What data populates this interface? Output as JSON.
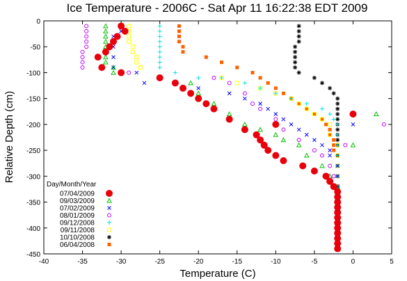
{
  "chart_data": {
    "type": "scatter",
    "title": "Ice Temperature - 2006C - Sat Apr 11 16:22:38 EDT 2009",
    "xlabel": "Temperature (C)",
    "ylabel": "Relative Depth (cm)",
    "xlim": [
      -40,
      5
    ],
    "ylim": [
      -450,
      0
    ],
    "xticks": [
      "-40",
      "-35",
      "-30",
      "-25",
      "-20",
      "-15",
      "-10",
      "-5",
      "0",
      "5"
    ],
    "yticks": [
      "0",
      "-50",
      "-100",
      "-150",
      "-200",
      "-250",
      "-300",
      "-350",
      "-400",
      "-450"
    ],
    "legend_title": "Day/Month/Year",
    "legend_position": "bottom-left",
    "grid": false,
    "series": [
      {
        "name": "07/04/2009",
        "marker": "filled-circle",
        "color": "#e8000b",
        "points": [
          [
            -30,
            -10
          ],
          [
            -29.5,
            -20
          ],
          [
            -30.5,
            -30
          ],
          [
            -31,
            -40
          ],
          [
            -31.5,
            -50
          ],
          [
            -32,
            -60
          ],
          [
            -33,
            -70
          ],
          [
            -32.5,
            -90
          ],
          [
            -30,
            -100
          ],
          [
            -25,
            -110
          ],
          [
            -23,
            -120
          ],
          [
            -22,
            -130
          ],
          [
            -21,
            -140
          ],
          [
            -20,
            -150
          ],
          [
            -19,
            -160
          ],
          [
            -18,
            -170
          ],
          [
            -16,
            -190
          ],
          [
            -14,
            -210
          ],
          [
            -12.5,
            -220
          ],
          [
            -12,
            -230
          ],
          [
            -11.5,
            -240
          ],
          [
            -11,
            -250
          ],
          [
            -10,
            -200
          ],
          [
            -10,
            -260
          ],
          [
            -9,
            -270
          ],
          [
            -6.5,
            -280
          ],
          [
            -5,
            -290
          ],
          [
            -3.5,
            -300
          ],
          [
            -3,
            -310
          ],
          [
            -2.5,
            -320
          ],
          [
            -2,
            -330
          ],
          [
            -2,
            -340
          ],
          [
            -2,
            -350
          ],
          [
            -2,
            -360
          ],
          [
            -2,
            -370
          ],
          [
            -2,
            -380
          ],
          [
            -2,
            -390
          ],
          [
            -2,
            -400
          ],
          [
            -2,
            -410
          ],
          [
            -2,
            -420
          ],
          [
            -2,
            -430
          ],
          [
            -2,
            -440
          ],
          [
            0,
            -180
          ]
        ]
      },
      {
        "name": "09/03/2009",
        "marker": "triangle",
        "color": "#00c000",
        "points": [
          [
            -32,
            -10
          ],
          [
            -32,
            -20
          ],
          [
            -32,
            -30
          ],
          [
            -32,
            -40
          ],
          [
            -32,
            -50
          ],
          [
            -32,
            -60
          ],
          [
            -32,
            -70
          ],
          [
            -32,
            -80
          ],
          [
            -31,
            -90
          ],
          [
            -31,
            -100
          ],
          [
            -25,
            -110
          ],
          [
            -21,
            -120
          ],
          [
            -20,
            -140
          ],
          [
            -18,
            -160
          ],
          [
            -16,
            -180
          ],
          [
            -14,
            -200
          ],
          [
            -12,
            -210
          ],
          [
            -10,
            -220
          ],
          [
            -9,
            -230
          ],
          [
            -7,
            -240
          ],
          [
            -6,
            -260
          ],
          [
            -4,
            -280
          ],
          [
            -3,
            -300
          ],
          [
            -2,
            -320
          ],
          [
            -2,
            -340
          ],
          [
            -2,
            -360
          ],
          [
            -2,
            -380
          ],
          [
            -2,
            -400
          ],
          [
            -2,
            -420
          ],
          [
            -2,
            -440
          ],
          [
            3,
            -180
          ],
          [
            0,
            -240
          ]
        ]
      },
      {
        "name": "07/02/2009",
        "marker": "x",
        "color": "#0000ff",
        "points": [
          [
            -30,
            -10
          ],
          [
            -30,
            -20
          ],
          [
            -31,
            -30
          ],
          [
            -31,
            -50
          ],
          [
            -31,
            -70
          ],
          [
            -31,
            -90
          ],
          [
            -28,
            -100
          ],
          [
            -27,
            -120
          ],
          [
            -20,
            -130
          ],
          [
            -16,
            -140
          ],
          [
            -14,
            -150
          ],
          [
            -12,
            -160
          ],
          [
            -11,
            -170
          ],
          [
            -10,
            -180
          ],
          [
            -9,
            -190
          ],
          [
            -8,
            -200
          ],
          [
            -7,
            -210
          ],
          [
            -6,
            -220
          ],
          [
            -5,
            -230
          ],
          [
            -4,
            -240
          ],
          [
            -3,
            -250
          ],
          [
            -3,
            -260
          ],
          [
            -2,
            -280
          ],
          [
            -2,
            -300
          ],
          [
            -2,
            -320
          ],
          [
            -2,
            -340
          ],
          [
            -2,
            -360
          ],
          [
            -2,
            -380
          ],
          [
            -2,
            -400
          ],
          [
            -2,
            -420
          ],
          [
            0,
            -200
          ]
        ]
      },
      {
        "name": "08/01/2009",
        "marker": "circle",
        "color": "#c000ff",
        "points": [
          [
            -34.5,
            -10
          ],
          [
            -34.5,
            -20
          ],
          [
            -34.5,
            -30
          ],
          [
            -34.5,
            -40
          ],
          [
            -34.5,
            -50
          ],
          [
            -35,
            -60
          ],
          [
            -35,
            -70
          ],
          [
            -35,
            -80
          ],
          [
            -35,
            -90
          ],
          [
            -29,
            -100
          ],
          [
            -18,
            -110
          ],
          [
            -16,
            -120
          ],
          [
            -14,
            -140
          ],
          [
            -13,
            -160
          ],
          [
            -12,
            -170
          ],
          [
            -10,
            -190
          ],
          [
            -9,
            -210
          ],
          [
            -7,
            -230
          ],
          [
            -5,
            -250
          ],
          [
            -4,
            -260
          ],
          [
            -3,
            -280
          ],
          [
            -2.5,
            -300
          ],
          [
            -2,
            -320
          ],
          [
            -2,
            -340
          ],
          [
            -2,
            -360
          ],
          [
            -2,
            -380
          ],
          [
            -2,
            -400
          ],
          [
            -2,
            -420
          ],
          [
            4,
            -200
          ],
          [
            -1,
            -240
          ]
        ]
      },
      {
        "name": "09/12/2008",
        "marker": "plus",
        "color": "#00e0e0",
        "points": [
          [
            -25,
            -10
          ],
          [
            -25,
            -20
          ],
          [
            -25,
            -30
          ],
          [
            -25,
            -40
          ],
          [
            -25,
            -50
          ],
          [
            -25,
            -60
          ],
          [
            -25,
            -70
          ],
          [
            -25,
            -80
          ],
          [
            -25,
            -90
          ],
          [
            -23,
            -100
          ],
          [
            -20,
            -110
          ],
          [
            -17,
            -110
          ],
          [
            -14,
            -120
          ],
          [
            -12,
            -130
          ],
          [
            -10,
            -140
          ],
          [
            -8,
            -150
          ],
          [
            -6,
            -160
          ],
          [
            -4,
            -170
          ],
          [
            -3,
            -180
          ],
          [
            -2.5,
            -190
          ],
          [
            -2,
            -200
          ],
          [
            -2,
            -220
          ],
          [
            -2,
            -240
          ],
          [
            -2,
            -260
          ],
          [
            -2,
            -280
          ],
          [
            -2,
            -300
          ],
          [
            -2,
            -320
          ],
          [
            -2,
            -340
          ],
          [
            -2,
            -360
          ],
          [
            -2,
            -380
          ],
          [
            -2,
            -400
          ],
          [
            -2,
            -420
          ],
          [
            -2,
            -440
          ]
        ]
      },
      {
        "name": "09/11/2008",
        "marker": "square",
        "color": "#ffff00",
        "points": [
          [
            -29,
            -10
          ],
          [
            -29,
            -20
          ],
          [
            -29,
            -30
          ],
          [
            -29,
            -40
          ],
          [
            -28.5,
            -50
          ],
          [
            -28.5,
            -60
          ],
          [
            -28,
            -70
          ],
          [
            -28,
            -80
          ],
          [
            -27.5,
            -90
          ],
          [
            -17,
            -110
          ],
          [
            -15,
            -120
          ],
          [
            -12,
            -130
          ],
          [
            -10,
            -140
          ],
          [
            -8,
            -150
          ],
          [
            -7,
            -160
          ],
          [
            -6,
            -170
          ],
          [
            -5,
            -180
          ],
          [
            -4,
            -190
          ],
          [
            -3,
            -200
          ],
          [
            -3,
            -220
          ],
          [
            -2,
            -240
          ],
          [
            -2,
            -260
          ],
          [
            -2,
            -280
          ],
          [
            -2,
            -300
          ],
          [
            -2,
            -320
          ],
          [
            -2,
            -340
          ],
          [
            -2,
            -360
          ],
          [
            -2,
            -380
          ],
          [
            -2,
            -400
          ],
          [
            -2,
            -420
          ],
          [
            -2,
            -440
          ]
        ]
      },
      {
        "name": "10/10/2008",
        "marker": "asterisk",
        "color": "#000000",
        "points": [
          [
            -7,
            -10
          ],
          [
            -7,
            -20
          ],
          [
            -7,
            -30
          ],
          [
            -7,
            -40
          ],
          [
            -7.5,
            -50
          ],
          [
            -7.5,
            -60
          ],
          [
            -7.5,
            -70
          ],
          [
            -7.5,
            -80
          ],
          [
            -7.5,
            -90
          ],
          [
            -7,
            -100
          ],
          [
            -5,
            -110
          ],
          [
            -4,
            -120
          ],
          [
            -3,
            -130
          ],
          [
            -2.5,
            -140
          ],
          [
            -2,
            -150
          ],
          [
            -2,
            -160
          ],
          [
            -2,
            -170
          ],
          [
            -2,
            -180
          ],
          [
            -2,
            -190
          ],
          [
            -2,
            -200
          ],
          [
            -2,
            -210
          ],
          [
            -2,
            -220
          ],
          [
            -2,
            -230
          ],
          [
            -2,
            -240
          ],
          [
            -2,
            -260
          ],
          [
            -2,
            -280
          ],
          [
            -2,
            -300
          ],
          [
            -2,
            -320
          ],
          [
            -2,
            -340
          ],
          [
            -2,
            -360
          ],
          [
            -2,
            -380
          ],
          [
            -2,
            -400
          ],
          [
            -2,
            -420
          ],
          [
            -2,
            -440
          ]
        ]
      },
      {
        "name": "06/04/2008",
        "marker": "filled-square",
        "color": "#ff6000",
        "points": [
          [
            -22.5,
            -10
          ],
          [
            -22.5,
            -20
          ],
          [
            -22.5,
            -30
          ],
          [
            -22.5,
            -40
          ],
          [
            -22,
            -50
          ],
          [
            -22,
            -60
          ],
          [
            -19,
            -70
          ],
          [
            -17,
            -80
          ],
          [
            -15,
            -90
          ],
          [
            -13,
            -100
          ],
          [
            -12,
            -110
          ],
          [
            -11,
            -120
          ],
          [
            -10,
            -130
          ],
          [
            -9,
            -140
          ],
          [
            -8,
            -150
          ],
          [
            -7,
            -160
          ],
          [
            -6,
            -170
          ],
          [
            -5,
            -180
          ],
          [
            -4,
            -190
          ],
          [
            -3.5,
            -200
          ],
          [
            -3,
            -210
          ],
          [
            -3,
            -220
          ],
          [
            -2.5,
            -230
          ],
          [
            -2.5,
            -240
          ],
          [
            -2.5,
            -250
          ],
          [
            -2,
            -260
          ],
          [
            -2,
            -280
          ],
          [
            -2,
            -300
          ],
          [
            -2,
            -320
          ],
          [
            -2,
            -340
          ],
          [
            -2,
            -360
          ],
          [
            -2,
            -380
          ],
          [
            -2,
            -400
          ],
          [
            -2,
            -420
          ],
          [
            -2,
            -440
          ]
        ]
      }
    ]
  }
}
